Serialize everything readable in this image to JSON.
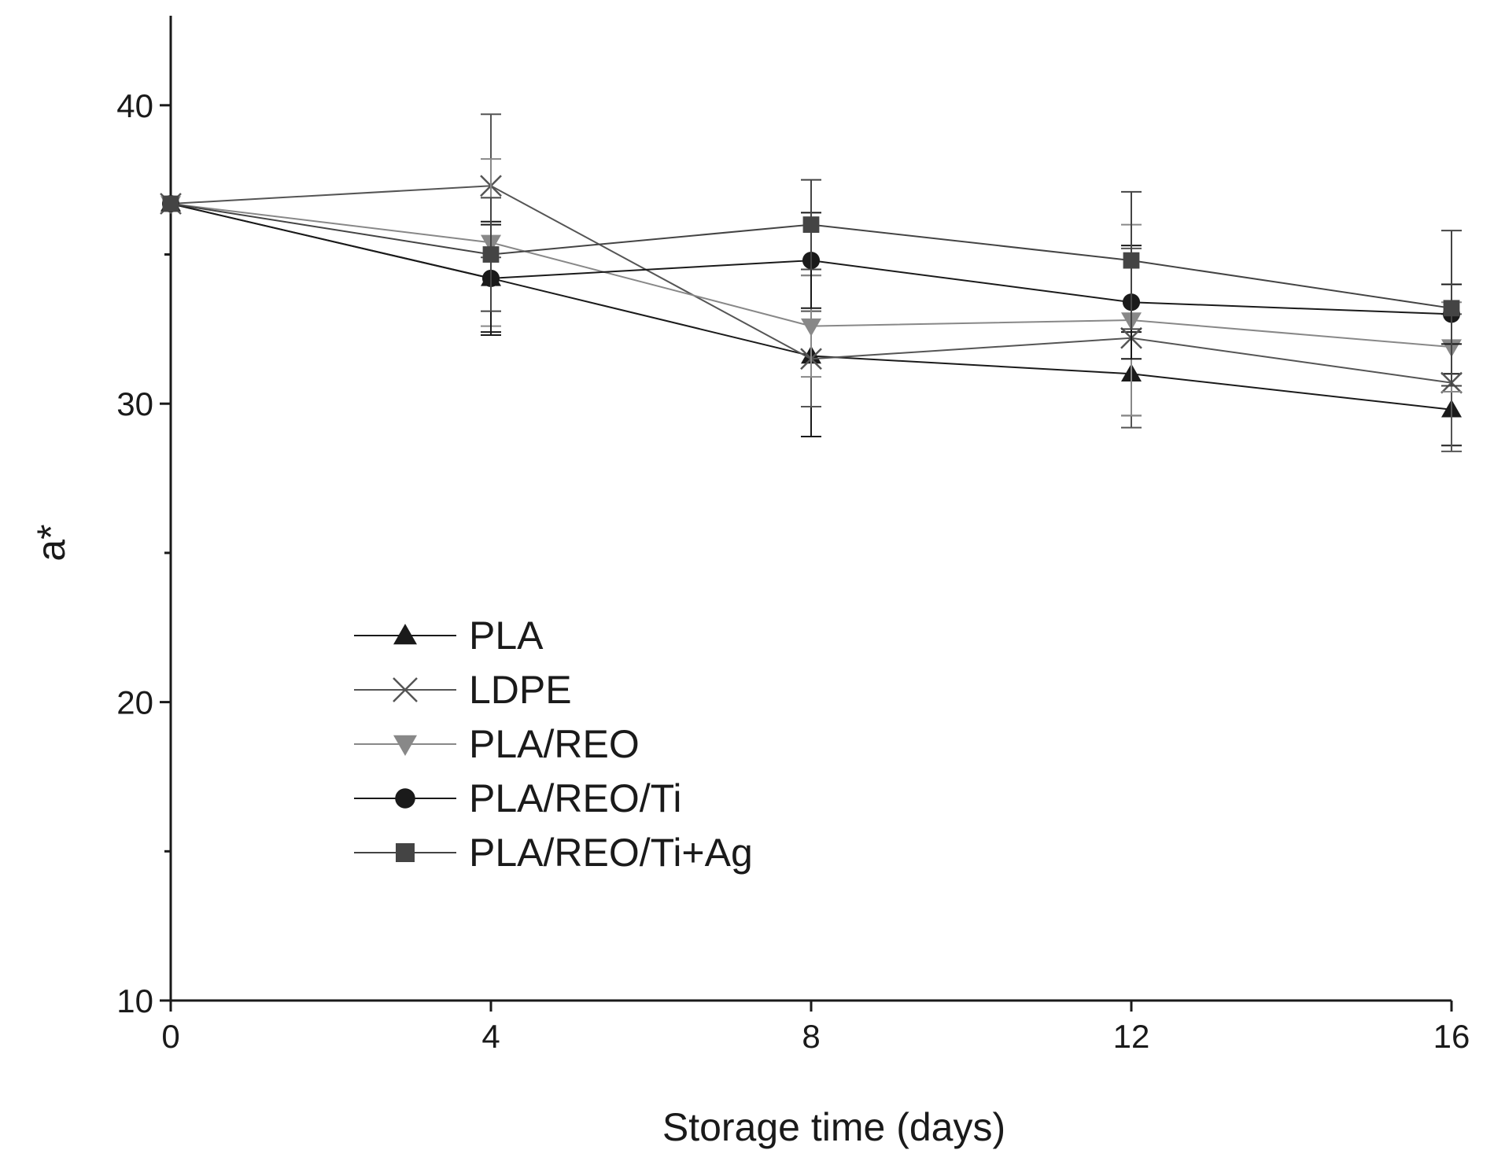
{
  "chart_data": {
    "type": "line",
    "title": "",
    "xlabel": "Storage time (days)",
    "ylabel": "a*",
    "xlim": [
      0,
      16
    ],
    "ylim": [
      10,
      43
    ],
    "x_ticks": [
      0,
      4,
      8,
      12,
      16
    ],
    "x_tick_labels": [
      "0",
      "4",
      "8",
      "12",
      "16"
    ],
    "y_ticks": [
      10,
      20,
      30,
      40
    ],
    "y_tick_labels": [
      "10",
      "20",
      "30",
      "40"
    ],
    "y_minor_ticks": [
      15,
      25,
      35
    ],
    "grid": false,
    "legend_position": "lower-left",
    "x": [
      0,
      4,
      8,
      12,
      16
    ],
    "series": [
      {
        "name": "PLA",
        "marker": "triangle-up",
        "color": "#1a1a1a",
        "values": [
          36.7,
          34.2,
          31.6,
          31.0,
          29.8
        ],
        "errors": [
          0,
          1.9,
          2.7,
          1.4,
          1.2
        ]
      },
      {
        "name": "LDPE",
        "marker": "x",
        "color": "#555555",
        "values": [
          36.7,
          37.3,
          31.5,
          32.2,
          30.7
        ],
        "errors": [
          0,
          2.4,
          1.6,
          3.0,
          2.3
        ]
      },
      {
        "name": "PLA/REO",
        "marker": "triangle-down",
        "color": "#888888",
        "values": [
          36.7,
          35.4,
          32.6,
          32.8,
          31.9
        ],
        "errors": [
          0,
          2.8,
          1.7,
          3.2,
          1.5
        ]
      },
      {
        "name": "PLA/REO/Ti",
        "marker": "circle",
        "color": "#1a1a1a",
        "values": [
          36.7,
          34.2,
          34.8,
          33.4,
          33.0
        ],
        "errors": [
          0,
          1.8,
          1.6,
          1.9,
          1.0
        ]
      },
      {
        "name": "PLA/REO/Ti+Ag",
        "marker": "square",
        "color": "#444444",
        "values": [
          36.7,
          35.0,
          36.0,
          34.8,
          33.2
        ],
        "errors": [
          0,
          1.9,
          1.5,
          2.3,
          2.6
        ]
      }
    ]
  }
}
